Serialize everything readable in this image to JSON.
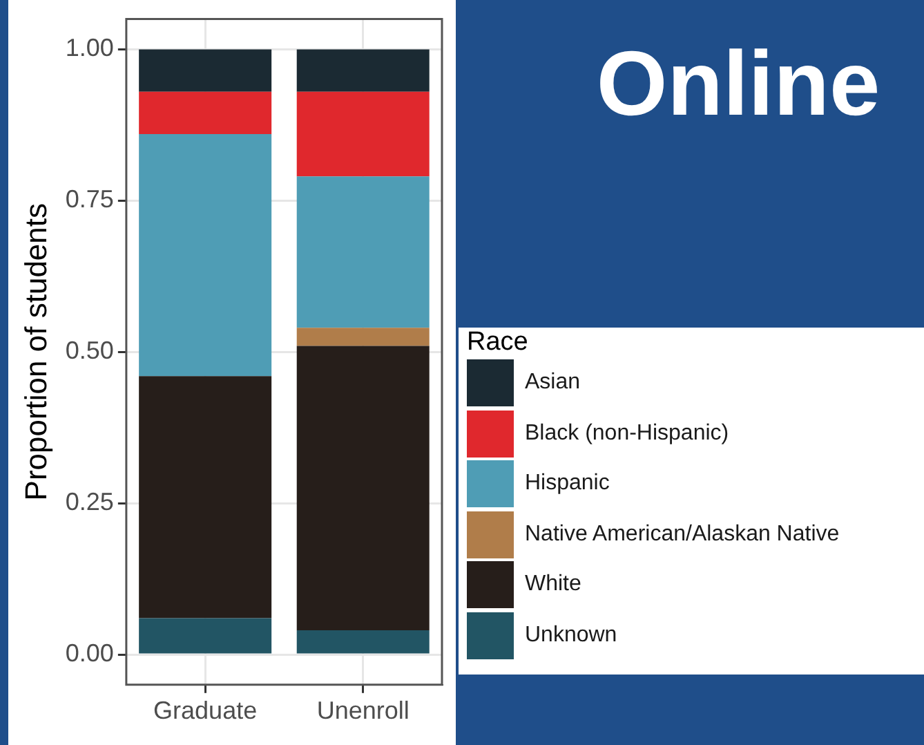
{
  "chart_data": {
    "type": "bar",
    "title": "Online",
    "ylabel": "Proportion of students",
    "legend_title": "Race",
    "categories": [
      "Graduate",
      "Unenroll"
    ],
    "stacked": true,
    "ylim": [
      -0.05,
      1.05
    ],
    "yticks": [
      {
        "value": 0,
        "label": "0.00"
      },
      {
        "value": 0.25,
        "label": "0.25"
      },
      {
        "value": 0.5,
        "label": "0.50"
      },
      {
        "value": 0.75,
        "label": "0.75"
      },
      {
        "value": 1,
        "label": "1.00"
      }
    ],
    "grid": true,
    "legend": "right",
    "series": [
      {
        "name": "Unknown",
        "color": "#225564",
        "values": [
          0.06,
          0.04
        ]
      },
      {
        "name": "White",
        "color": "#261e1a",
        "values": [
          0.4,
          0.47
        ]
      },
      {
        "name": "Native American/Alaskan Native",
        "color": "#b07d4a",
        "values": [
          0,
          0.03
        ]
      },
      {
        "name": "Hispanic",
        "color": "#4f9db5",
        "values": [
          0.4,
          0.25
        ]
      },
      {
        "name": "Black (non-Hispanic)",
        "color": "#e0282d",
        "values": [
          0.07,
          0.14
        ]
      },
      {
        "name": "Asian",
        "color": "#1b2a33",
        "values": [
          0.07,
          0.07
        ]
      }
    ]
  }
}
